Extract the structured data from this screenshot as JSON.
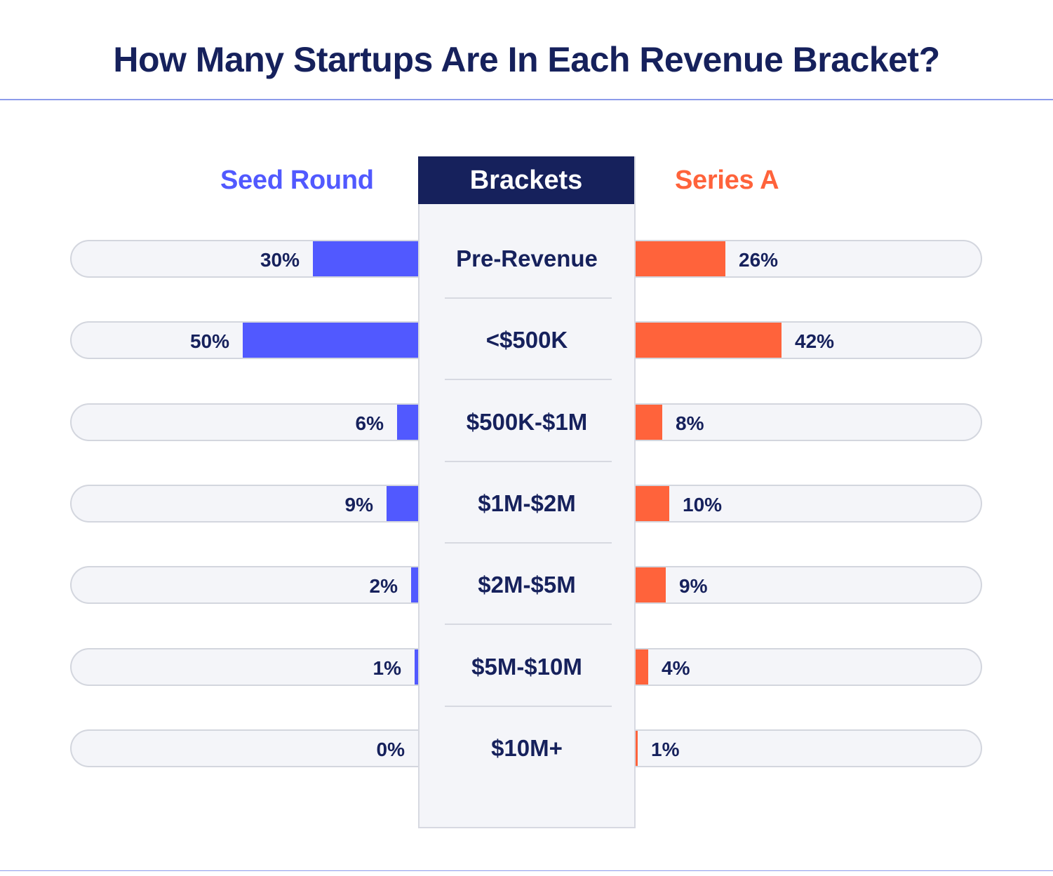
{
  "colors": {
    "seed": "#5159ff",
    "series": "#ff633b",
    "navy": "#16215c"
  },
  "chart_data": {
    "type": "bar",
    "title": "How Many Startups Are In Each Revenue Bracket?",
    "center_header": "Brackets",
    "xlim": [
      0,
      100
    ],
    "categories": [
      "Pre-Revenue",
      "<$500K",
      "$500K-$1M",
      "$1M-$2M",
      "$2M-$5M",
      "$5M-$10M",
      "$10M+"
    ],
    "series": [
      {
        "name": "Seed Round",
        "values": [
          30,
          50,
          6,
          9,
          2,
          1,
          0
        ],
        "labels": [
          "30%",
          "50%",
          "6%",
          "9%",
          "2%",
          "1%",
          "0%"
        ]
      },
      {
        "name": "Series A",
        "values": [
          26,
          42,
          8,
          10,
          9,
          4,
          1
        ],
        "labels": [
          "26%",
          "42%",
          "8%",
          "10%",
          "9%",
          "4%",
          "1%"
        ]
      }
    ]
  }
}
